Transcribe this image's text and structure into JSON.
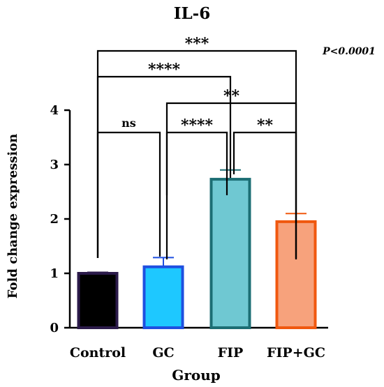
{
  "chart_data": {
    "type": "bar",
    "title": "IL-6",
    "xlabel": "Group",
    "ylabel": "Fold change expression",
    "ylim": [
      0,
      4
    ],
    "yticks": [
      "0",
      "1",
      "2",
      "3",
      "4"
    ],
    "grid": false,
    "categories": [
      "Control",
      "GC",
      "FIP",
      "FIP+GC"
    ],
    "values": [
      1.0,
      1.12,
      2.73,
      1.95
    ],
    "errors": [
      0.02,
      0.17,
      0.17,
      0.15
    ],
    "colors": {
      "fill": [
        "#000000",
        "#1ec8ff",
        "#6fc8d2",
        "#f7a27c"
      ],
      "edge": [
        "#2b1a4a",
        "#1e4fe0",
        "#1c6e74",
        "#f0580f"
      ]
    },
    "significance": [
      {
        "from": 0,
        "to": 1,
        "label": "ns"
      },
      {
        "from": 1,
        "to": 2,
        "label": "****"
      },
      {
        "from": 2,
        "to": 3,
        "label": "**"
      },
      {
        "from": 1,
        "to": 3,
        "label": "**"
      },
      {
        "from": 0,
        "to": 2,
        "label": "****"
      },
      {
        "from": 0,
        "to": 3,
        "label": "***"
      }
    ],
    "annotation": "P<0.0001"
  }
}
